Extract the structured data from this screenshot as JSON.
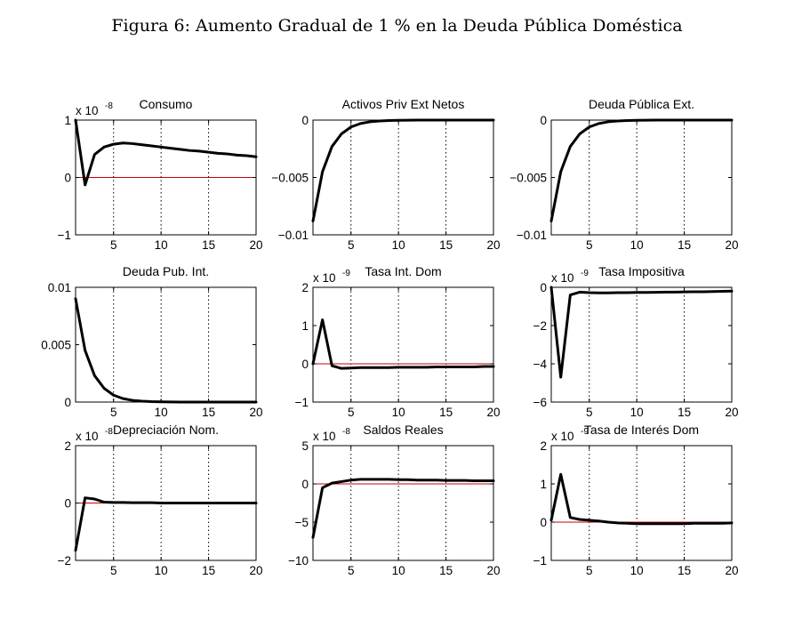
{
  "figure_title": "Figura 6: Aumento Gradual de 1 % en la Deuda Pública Doméstica",
  "colors": {
    "line": "#000000",
    "zero_line": "#cc0000",
    "grid": "#000000"
  },
  "chart_data": [
    {
      "type": "line",
      "title": "Consumo",
      "exp_base": "x 10",
      "exp_power": "-8",
      "x": [
        1,
        2,
        3,
        4,
        5,
        6,
        7,
        8,
        9,
        10,
        11,
        12,
        13,
        14,
        15,
        16,
        17,
        18,
        19,
        20
      ],
      "values": [
        1.0,
        -0.13,
        0.4,
        0.53,
        0.58,
        0.6,
        0.59,
        0.57,
        0.55,
        0.53,
        0.51,
        0.49,
        0.47,
        0.46,
        0.44,
        0.42,
        0.41,
        0.39,
        0.38,
        0.36
      ],
      "xlim": [
        1,
        20
      ],
      "ylim": [
        -1,
        1
      ],
      "xticks": [
        {
          "v": 5,
          "label": "5"
        },
        {
          "v": 10,
          "label": "10"
        },
        {
          "v": 15,
          "label": "15"
        },
        {
          "v": 20,
          "label": "20"
        }
      ],
      "yticks": [
        {
          "v": 1,
          "label": "1"
        },
        {
          "v": 0,
          "label": "0"
        },
        {
          "v": -1,
          "label": "−1"
        }
      ]
    },
    {
      "type": "line",
      "title": "Activos Priv Ext Netos",
      "exp_base": "",
      "exp_power": "",
      "x": [
        1,
        2,
        3,
        4,
        5,
        6,
        7,
        8,
        9,
        10,
        11,
        12,
        13,
        14,
        15,
        16,
        17,
        18,
        19,
        20
      ],
      "values": [
        -0.0088,
        -0.0045,
        -0.0023,
        -0.0012,
        -0.0006,
        -0.0003,
        -0.00015,
        -8e-05,
        -4e-05,
        -2e-05,
        -1e-05,
        0,
        0,
        0,
        0,
        0,
        0,
        0,
        0,
        0
      ],
      "xlim": [
        1,
        20
      ],
      "ylim": [
        -0.01,
        0
      ],
      "xticks": [
        {
          "v": 5,
          "label": "5"
        },
        {
          "v": 10,
          "label": "10"
        },
        {
          "v": 15,
          "label": "15"
        },
        {
          "v": 20,
          "label": "20"
        }
      ],
      "yticks": [
        {
          "v": 0,
          "label": "0"
        },
        {
          "v": -0.005,
          "label": "−0.005"
        },
        {
          "v": -0.01,
          "label": "−0.01"
        }
      ]
    },
    {
      "type": "line",
      "title": "Deuda Pública Ext.",
      "exp_base": "",
      "exp_power": "",
      "x": [
        1,
        2,
        3,
        4,
        5,
        6,
        7,
        8,
        9,
        10,
        11,
        12,
        13,
        14,
        15,
        16,
        17,
        18,
        19,
        20
      ],
      "values": [
        -0.0088,
        -0.0045,
        -0.0023,
        -0.0012,
        -0.0006,
        -0.0003,
        -0.00015,
        -8e-05,
        -4e-05,
        -2e-05,
        -1e-05,
        0,
        0,
        0,
        0,
        0,
        0,
        0,
        0,
        0
      ],
      "xlim": [
        1,
        20
      ],
      "ylim": [
        -0.01,
        0
      ],
      "xticks": [
        {
          "v": 5,
          "label": "5"
        },
        {
          "v": 10,
          "label": "10"
        },
        {
          "v": 15,
          "label": "15"
        },
        {
          "v": 20,
          "label": "20"
        }
      ],
      "yticks": [
        {
          "v": 0,
          "label": "0"
        },
        {
          "v": -0.005,
          "label": "−0.005"
        },
        {
          "v": -0.01,
          "label": "−0.01"
        }
      ]
    },
    {
      "type": "line",
      "title": "Deuda Pub. Int.",
      "exp_base": "",
      "exp_power": "",
      "x": [
        1,
        2,
        3,
        4,
        5,
        6,
        7,
        8,
        9,
        10,
        11,
        12,
        13,
        14,
        15,
        16,
        17,
        18,
        19,
        20
      ],
      "values": [
        0.009,
        0.0045,
        0.0023,
        0.0012,
        0.0006,
        0.0003,
        0.00015,
        8e-05,
        4e-05,
        2e-05,
        1e-05,
        0,
        0,
        0,
        0,
        0,
        0,
        0,
        0,
        0
      ],
      "xlim": [
        1,
        20
      ],
      "ylim": [
        0,
        0.01
      ],
      "xticks": [
        {
          "v": 5,
          "label": "5"
        },
        {
          "v": 10,
          "label": "10"
        },
        {
          "v": 15,
          "label": "15"
        },
        {
          "v": 20,
          "label": "20"
        }
      ],
      "yticks": [
        {
          "v": 0.01,
          "label": "0.01"
        },
        {
          "v": 0.005,
          "label": "0.005"
        },
        {
          "v": 0,
          "label": "0"
        }
      ]
    },
    {
      "type": "line",
      "title": "Tasa Int. Dom",
      "exp_base": "x 10",
      "exp_power": "-9",
      "x": [
        1,
        2,
        3,
        4,
        5,
        6,
        7,
        8,
        9,
        10,
        11,
        12,
        13,
        14,
        15,
        16,
        17,
        18,
        19,
        20
      ],
      "values": [
        0.0,
        1.15,
        -0.05,
        -0.12,
        -0.11,
        -0.1,
        -0.1,
        -0.1,
        -0.1,
        -0.09,
        -0.09,
        -0.09,
        -0.09,
        -0.08,
        -0.08,
        -0.08,
        -0.08,
        -0.08,
        -0.07,
        -0.07
      ],
      "xlim": [
        1,
        20
      ],
      "ylim": [
        -1,
        2
      ],
      "xticks": [
        {
          "v": 5,
          "label": "5"
        },
        {
          "v": 10,
          "label": "10"
        },
        {
          "v": 15,
          "label": "15"
        },
        {
          "v": 20,
          "label": "20"
        }
      ],
      "yticks": [
        {
          "v": 2,
          "label": "2"
        },
        {
          "v": 1,
          "label": "1"
        },
        {
          "v": 0,
          "label": "0"
        },
        {
          "v": -1,
          "label": "−1"
        }
      ]
    },
    {
      "type": "line",
      "title": "Tasa Impositiva",
      "exp_base": "x 10",
      "exp_power": "-9",
      "x": [
        1,
        2,
        3,
        4,
        5,
        6,
        7,
        8,
        9,
        10,
        11,
        12,
        13,
        14,
        15,
        16,
        17,
        18,
        19,
        20
      ],
      "values": [
        0.0,
        -4.7,
        -0.4,
        -0.25,
        -0.28,
        -0.29,
        -0.29,
        -0.28,
        -0.28,
        -0.27,
        -0.27,
        -0.26,
        -0.25,
        -0.25,
        -0.24,
        -0.23,
        -0.23,
        -0.22,
        -0.21,
        -0.2
      ],
      "xlim": [
        1,
        20
      ],
      "ylim": [
        -6,
        0
      ],
      "xticks": [
        {
          "v": 5,
          "label": "5"
        },
        {
          "v": 10,
          "label": "10"
        },
        {
          "v": 15,
          "label": "15"
        },
        {
          "v": 20,
          "label": "20"
        }
      ],
      "yticks": [
        {
          "v": 0,
          "label": "0"
        },
        {
          "v": -2,
          "label": "−2"
        },
        {
          "v": -4,
          "label": "−4"
        },
        {
          "v": -6,
          "label": "−6"
        }
      ]
    },
    {
      "type": "line",
      "title": "Depreciación Nom.",
      "exp_base": "x 10",
      "exp_power": "-8",
      "x": [
        1,
        2,
        3,
        4,
        5,
        6,
        7,
        8,
        9,
        10,
        11,
        12,
        13,
        14,
        15,
        16,
        17,
        18,
        19,
        20
      ],
      "values": [
        -1.65,
        0.18,
        0.14,
        0.03,
        0.02,
        0.02,
        0.01,
        0.01,
        0.01,
        0.0,
        0.0,
        0.0,
        0.0,
        0.0,
        0.0,
        0.0,
        0.0,
        0.0,
        0.0,
        0.0
      ],
      "xlim": [
        1,
        20
      ],
      "ylim": [
        -2,
        2
      ],
      "xticks": [
        {
          "v": 5,
          "label": "5"
        },
        {
          "v": 10,
          "label": "10"
        },
        {
          "v": 15,
          "label": "15"
        },
        {
          "v": 20,
          "label": "20"
        }
      ],
      "yticks": [
        {
          "v": 2,
          "label": "2"
        },
        {
          "v": 0,
          "label": "0"
        },
        {
          "v": -2,
          "label": "−2"
        }
      ]
    },
    {
      "type": "line",
      "title": "Saldos Reales",
      "exp_base": "x 10",
      "exp_power": "-8",
      "x": [
        1,
        2,
        3,
        4,
        5,
        6,
        7,
        8,
        9,
        10,
        11,
        12,
        13,
        14,
        15,
        16,
        17,
        18,
        19,
        20
      ],
      "values": [
        -7.0,
        -0.5,
        0.1,
        0.3,
        0.5,
        0.6,
        0.6,
        0.6,
        0.6,
        0.55,
        0.55,
        0.5,
        0.5,
        0.5,
        0.45,
        0.45,
        0.45,
        0.4,
        0.4,
        0.4
      ],
      "xlim": [
        1,
        20
      ],
      "ylim": [
        -10,
        5
      ],
      "xticks": [
        {
          "v": 5,
          "label": "5"
        },
        {
          "v": 10,
          "label": "10"
        },
        {
          "v": 15,
          "label": "15"
        },
        {
          "v": 20,
          "label": "20"
        }
      ],
      "yticks": [
        {
          "v": 5,
          "label": "5"
        },
        {
          "v": 0,
          "label": "0"
        },
        {
          "v": -5,
          "label": "−5"
        },
        {
          "v": -10,
          "label": "−10"
        }
      ]
    },
    {
      "type": "line",
      "title": "Tasa de Interés Dom",
      "exp_base": "x 10",
      "exp_power": "-9",
      "x": [
        1,
        2,
        3,
        4,
        5,
        6,
        7,
        8,
        9,
        10,
        11,
        12,
        13,
        14,
        15,
        16,
        17,
        18,
        19,
        20
      ],
      "values": [
        0.05,
        1.25,
        0.12,
        0.07,
        0.05,
        0.03,
        0.0,
        -0.02,
        -0.03,
        -0.04,
        -0.04,
        -0.04,
        -0.04,
        -0.04,
        -0.04,
        -0.03,
        -0.03,
        -0.03,
        -0.03,
        -0.02
      ],
      "xlim": [
        1,
        20
      ],
      "ylim": [
        -1,
        2
      ],
      "xticks": [
        {
          "v": 5,
          "label": "5"
        },
        {
          "v": 10,
          "label": "10"
        },
        {
          "v": 15,
          "label": "15"
        },
        {
          "v": 20,
          "label": "20"
        }
      ],
      "yticks": [
        {
          "v": 2,
          "label": "2"
        },
        {
          "v": 1,
          "label": "1"
        },
        {
          "v": 0,
          "label": "0"
        },
        {
          "v": -1,
          "label": "−1"
        }
      ]
    }
  ]
}
